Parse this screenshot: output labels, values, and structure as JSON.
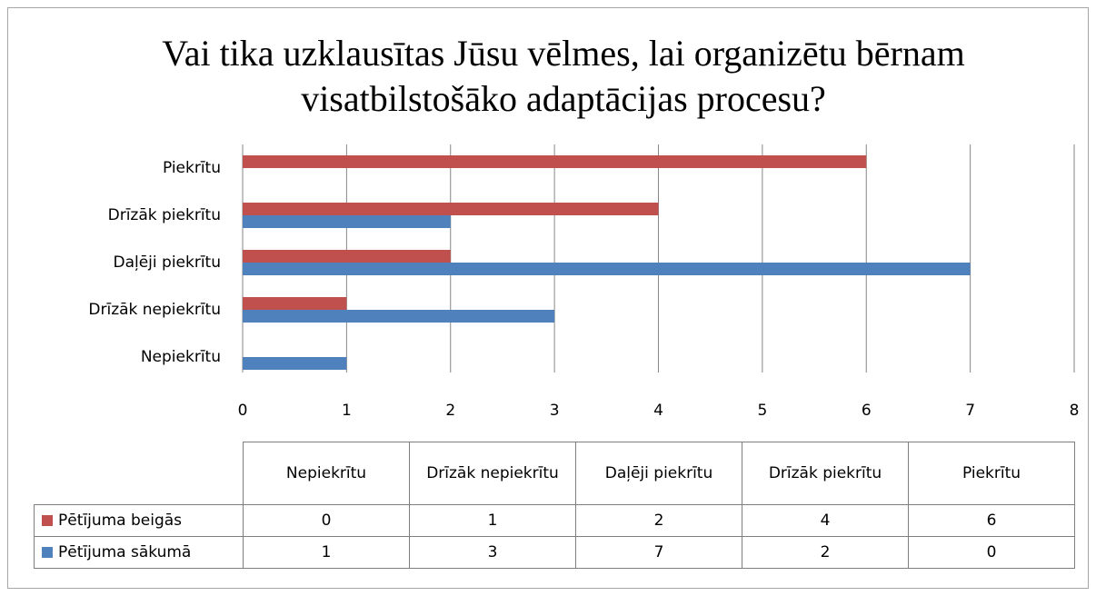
{
  "chart_data": {
    "type": "hbar",
    "title": "Vai tika uzklausītas Jūsu vēlmes, lai organizētu bērnam visatbilstošāko adaptācijas procesu?",
    "categories": [
      "Nepiekrītu",
      "Drīzāk nepiekrītu",
      "Daļēji piekrītu",
      "Drīzāk piekrītu",
      "Piekrītu"
    ],
    "series": [
      {
        "name": "Pētījuma beigās",
        "color": "#c0504d",
        "values": [
          0,
          1,
          2,
          4,
          6
        ]
      },
      {
        "name": "Pētījuma sākumā",
        "color": "#4f81bd",
        "values": [
          1,
          3,
          7,
          2,
          0
        ]
      }
    ],
    "xlim": [
      0,
      8
    ],
    "xticks": [
      0,
      1,
      2,
      3,
      4,
      5,
      6,
      7,
      8
    ],
    "grid": true,
    "data_table": true
  }
}
